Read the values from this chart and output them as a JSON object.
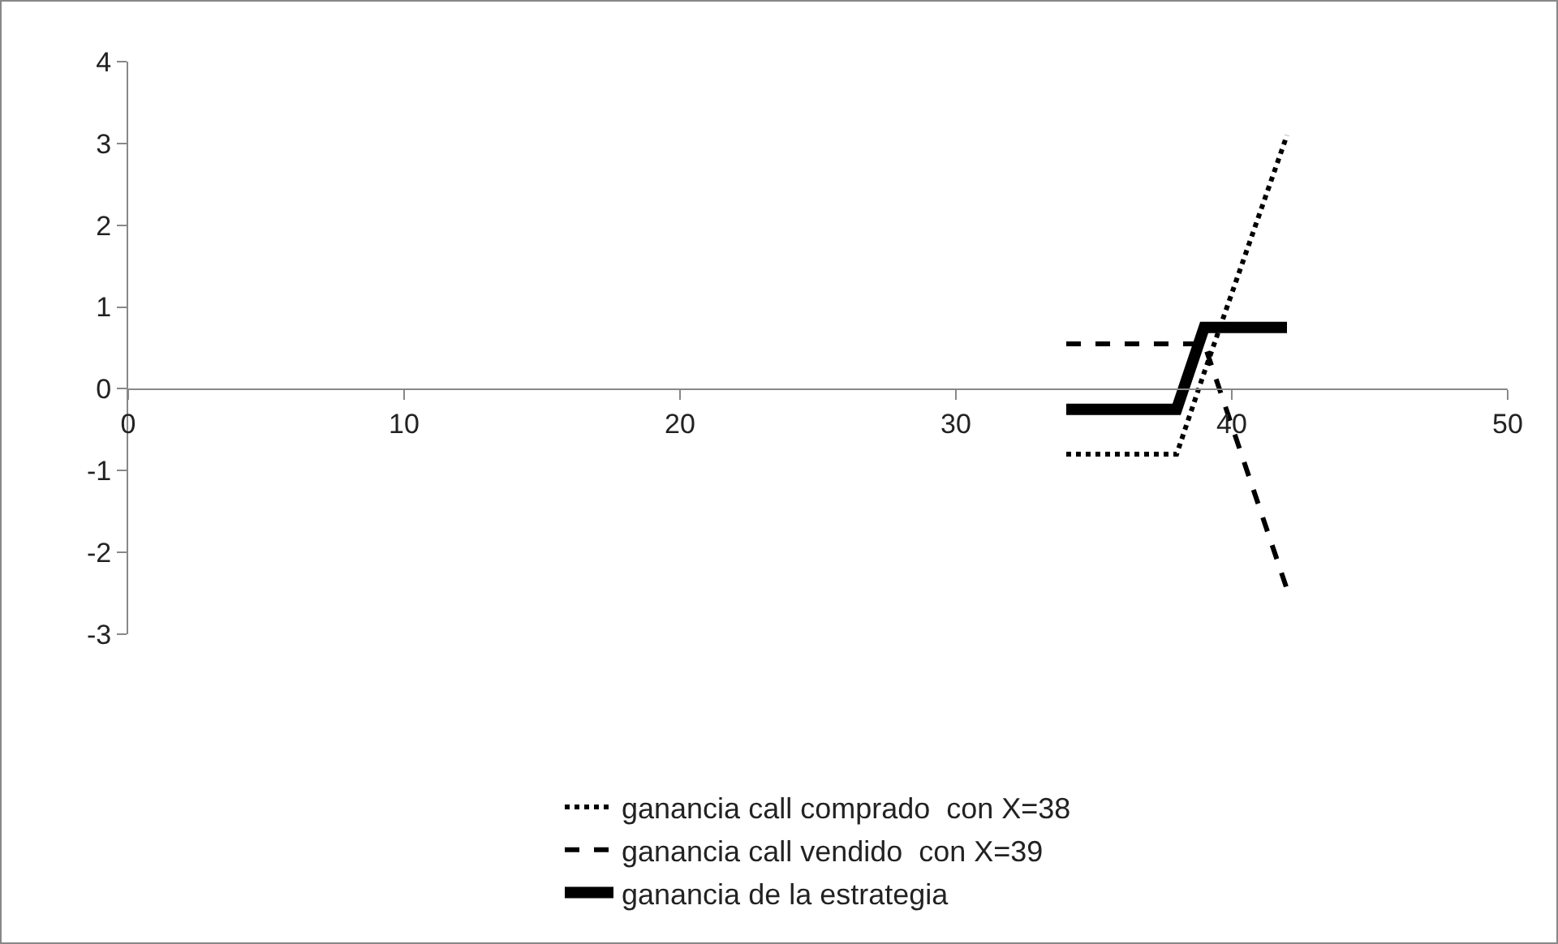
{
  "chart_data": {
    "type": "line",
    "x": [
      34,
      38,
      39,
      42
    ],
    "series": [
      {
        "name": "ganancia call comprado  con X=38",
        "color": "#000000",
        "line_style": "dotted",
        "values": [
          -0.8,
          -0.8,
          0.2,
          3.1
        ]
      },
      {
        "name": "ganancia call vendido  con X=39",
        "color": "#000000",
        "line_style": "dashed",
        "values": [
          0.55,
          0.55,
          0.55,
          -2.45
        ]
      },
      {
        "name": "ganancia de la estrategia",
        "color": "#000000",
        "line_style": "solid",
        "values": [
          -0.25,
          -0.25,
          0.75,
          0.75
        ]
      }
    ],
    "xlim": [
      0,
      50
    ],
    "xticks": [
      0,
      10,
      20,
      30,
      40,
      50
    ],
    "ylim": [
      -3,
      4
    ],
    "yticks": [
      -3,
      -2,
      -1,
      0,
      1,
      2,
      3,
      4
    ],
    "grid": false,
    "legend": "bottom",
    "marker": "none"
  }
}
